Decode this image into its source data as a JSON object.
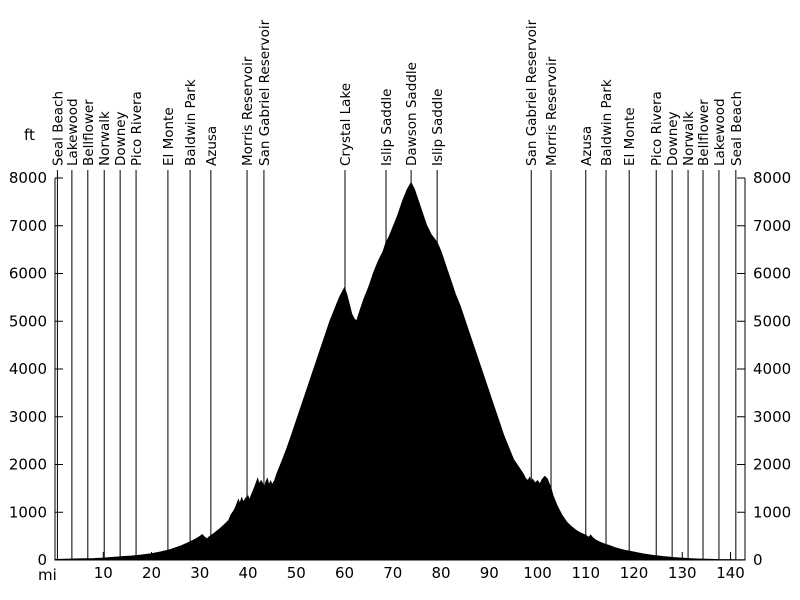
{
  "chart_data": {
    "type": "area",
    "title": "",
    "x_unit_label": "mi",
    "y_unit_label": "ft",
    "xlim": [
      0,
      143
    ],
    "ylim": [
      0,
      8000
    ],
    "x_ticks": [
      10,
      20,
      30,
      40,
      50,
      60,
      70,
      80,
      90,
      100,
      110,
      120,
      130,
      140
    ],
    "y_ticks": [
      0,
      1000,
      2000,
      3000,
      4000,
      5000,
      6000,
      7000,
      8000
    ],
    "grid": false,
    "legend": false,
    "fill_color": "#000000",
    "axis_color": "#000000",
    "background_color": "#ffffff",
    "waypoints": [
      {
        "label": "Seal Beach",
        "mile": 0.5
      },
      {
        "label": "Lakewood",
        "mile": 3.5
      },
      {
        "label": "Bellflower",
        "mile": 6.8
      },
      {
        "label": "Norwalk",
        "mile": 10.2
      },
      {
        "label": "Downey",
        "mile": 13.5
      },
      {
        "label": "Pico Rivera",
        "mile": 16.8
      },
      {
        "label": "El Monte",
        "mile": 23.4
      },
      {
        "label": "Baldwin Park",
        "mile": 28.0
      },
      {
        "label": "Azusa",
        "mile": 32.3
      },
      {
        "label": "Morris Reservoir",
        "mile": 39.8
      },
      {
        "label": "San Gabriel Reservoir",
        "mile": 43.3
      },
      {
        "label": "Crystal Lake",
        "mile": 60.1
      },
      {
        "label": "Islip Saddle",
        "mile": 68.6
      },
      {
        "label": "Dawson Saddle",
        "mile": 73.8
      },
      {
        "label": "Islip Saddle",
        "mile": 79.2
      },
      {
        "label": "San Gabriel Reservoir",
        "mile": 98.7
      },
      {
        "label": "Morris Reservoir",
        "mile": 102.8
      },
      {
        "label": "Azusa",
        "mile": 110.0
      },
      {
        "label": "Baldwin Park",
        "mile": 114.2
      },
      {
        "label": "El Monte",
        "mile": 119.0
      },
      {
        "label": "Pico Rivera",
        "mile": 124.6
      },
      {
        "label": "Downey",
        "mile": 127.9
      },
      {
        "label": "Norwalk",
        "mile": 131.2
      },
      {
        "label": "Bellflower",
        "mile": 134.3
      },
      {
        "label": "Lakewood",
        "mile": 137.6
      },
      {
        "label": "Seal Beach",
        "mile": 141.1
      }
    ],
    "profile": [
      [
        0,
        10
      ],
      [
        2,
        15
      ],
      [
        4,
        20
      ],
      [
        6,
        25
      ],
      [
        8,
        30
      ],
      [
        10,
        40
      ],
      [
        12,
        55
      ],
      [
        14,
        70
      ],
      [
        16,
        85
      ],
      [
        18,
        105
      ],
      [
        20,
        130
      ],
      [
        22,
        170
      ],
      [
        24,
        220
      ],
      [
        26,
        290
      ],
      [
        28,
        380
      ],
      [
        29,
        430
      ],
      [
        30,
        490
      ],
      [
        30.5,
        530
      ],
      [
        31,
        480
      ],
      [
        31.5,
        440
      ],
      [
        32,
        490
      ],
      [
        33,
        560
      ],
      [
        34,
        640
      ],
      [
        35,
        730
      ],
      [
        36,
        830
      ],
      [
        36.5,
        950
      ],
      [
        37,
        1020
      ],
      [
        37.5,
        1120
      ],
      [
        38,
        1260
      ],
      [
        38.3,
        1180
      ],
      [
        38.7,
        1300
      ],
      [
        39,
        1210
      ],
      [
        39.5,
        1290
      ],
      [
        40,
        1340
      ],
      [
        40.3,
        1250
      ],
      [
        40.7,
        1360
      ],
      [
        41,
        1430
      ],
      [
        41.5,
        1560
      ],
      [
        42,
        1700
      ],
      [
        42.3,
        1590
      ],
      [
        42.7,
        1660
      ],
      [
        43,
        1610
      ],
      [
        43.4,
        1510
      ],
      [
        43.7,
        1630
      ],
      [
        44,
        1700
      ],
      [
        44.3,
        1570
      ],
      [
        44.7,
        1650
      ],
      [
        45,
        1570
      ],
      [
        45.5,
        1660
      ],
      [
        46,
        1810
      ],
      [
        47,
        2060
      ],
      [
        48,
        2320
      ],
      [
        49,
        2610
      ],
      [
        50,
        2910
      ],
      [
        51,
        3210
      ],
      [
        52,
        3510
      ],
      [
        53,
        3810
      ],
      [
        54,
        4110
      ],
      [
        55,
        4410
      ],
      [
        56,
        4710
      ],
      [
        57,
        5010
      ],
      [
        58,
        5260
      ],
      [
        59,
        5510
      ],
      [
        60,
        5700
      ],
      [
        60.5,
        5550
      ],
      [
        61,
        5350
      ],
      [
        61.5,
        5150
      ],
      [
        62,
        5050
      ],
      [
        62.5,
        5000
      ],
      [
        63,
        5160
      ],
      [
        63.5,
        5310
      ],
      [
        64,
        5460
      ],
      [
        65,
        5710
      ],
      [
        66,
        6010
      ],
      [
        67,
        6260
      ],
      [
        68,
        6460
      ],
      [
        68.6,
        6650
      ],
      [
        69.2,
        6760
      ],
      [
        70,
        6960
      ],
      [
        71,
        7210
      ],
      [
        72,
        7510
      ],
      [
        73,
        7760
      ],
      [
        73.8,
        7900
      ],
      [
        74.5,
        7760
      ],
      [
        75,
        7610
      ],
      [
        76,
        7310
      ],
      [
        77,
        7010
      ],
      [
        78,
        6810
      ],
      [
        79.2,
        6650
      ],
      [
        80,
        6460
      ],
      [
        81,
        6160
      ],
      [
        82,
        5860
      ],
      [
        83,
        5560
      ],
      [
        84,
        5310
      ],
      [
        85,
        5010
      ],
      [
        86,
        4710
      ],
      [
        87,
        4410
      ],
      [
        88,
        4110
      ],
      [
        89,
        3810
      ],
      [
        90,
        3510
      ],
      [
        91,
        3210
      ],
      [
        92,
        2910
      ],
      [
        93,
        2610
      ],
      [
        94,
        2360
      ],
      [
        95,
        2110
      ],
      [
        96,
        1960
      ],
      [
        97,
        1810
      ],
      [
        97.5,
        1710
      ],
      [
        98,
        1660
      ],
      [
        98.4,
        1730
      ],
      [
        98.7,
        1610
      ],
      [
        99,
        1690
      ],
      [
        99.5,
        1610
      ],
      [
        100,
        1660
      ],
      [
        100.5,
        1590
      ],
      [
        101,
        1690
      ],
      [
        101.5,
        1750
      ],
      [
        102,
        1700
      ],
      [
        102.4,
        1600
      ],
      [
        102.8,
        1500
      ],
      [
        103.2,
        1350
      ],
      [
        104,
        1150
      ],
      [
        105,
        950
      ],
      [
        106,
        800
      ],
      [
        107,
        700
      ],
      [
        108,
        620
      ],
      [
        109,
        560
      ],
      [
        110,
        520
      ],
      [
        110.6,
        470
      ],
      [
        111,
        520
      ],
      [
        111.5,
        460
      ],
      [
        112,
        420
      ],
      [
        113,
        370
      ],
      [
        114,
        330
      ],
      [
        115,
        300
      ],
      [
        116,
        260
      ],
      [
        117,
        230
      ],
      [
        118,
        205
      ],
      [
        119,
        185
      ],
      [
        120,
        165
      ],
      [
        121,
        145
      ],
      [
        122,
        125
      ],
      [
        123,
        110
      ],
      [
        124,
        95
      ],
      [
        125,
        85
      ],
      [
        126,
        72
      ],
      [
        127,
        62
      ],
      [
        128,
        52
      ],
      [
        129,
        45
      ],
      [
        130,
        40
      ],
      [
        131,
        32
      ],
      [
        132,
        26
      ],
      [
        133,
        22
      ],
      [
        134,
        18
      ],
      [
        135,
        15
      ],
      [
        136,
        12
      ],
      [
        137,
        10
      ],
      [
        138,
        9
      ],
      [
        139,
        8
      ],
      [
        140,
        7
      ],
      [
        141,
        6
      ],
      [
        142,
        6
      ],
      [
        143,
        6
      ]
    ]
  }
}
